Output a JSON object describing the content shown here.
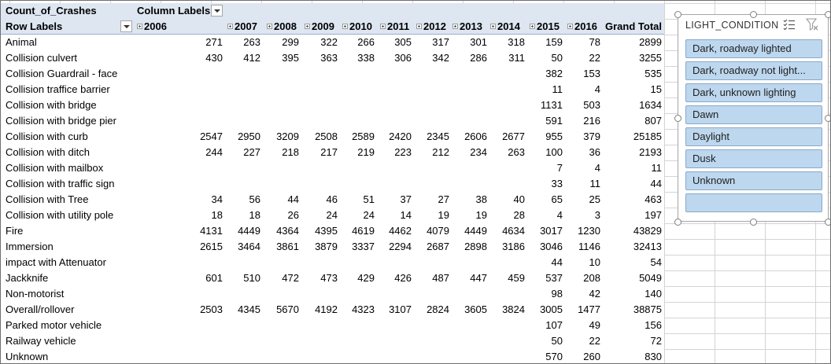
{
  "pivot": {
    "value_field": "Count_of_Crashes",
    "column_labels_header": "Column Labels",
    "row_labels_header": "Row Labels",
    "grand_total_header": "Grand Total",
    "years": [
      "2006",
      "2007",
      "2008",
      "2009",
      "2010",
      "2011",
      "2012",
      "2013",
      "2014",
      "2015",
      "2016"
    ],
    "rows": [
      {
        "label": "Animal",
        "values": [
          "271",
          "263",
          "299",
          "322",
          "266",
          "305",
          "317",
          "301",
          "318",
          "159",
          "78"
        ],
        "total": "2899"
      },
      {
        "label": "Collision culvert",
        "values": [
          "430",
          "412",
          "395",
          "363",
          "338",
          "306",
          "342",
          "286",
          "311",
          "50",
          "22"
        ],
        "total": "3255"
      },
      {
        "label": "Collision Guardrail - face",
        "values": [
          "",
          "",
          "",
          "",
          "",
          "",
          "",
          "",
          "",
          "382",
          "153"
        ],
        "total": "535"
      },
      {
        "label": "Collision traffice barrier",
        "values": [
          "",
          "",
          "",
          "",
          "",
          "",
          "",
          "",
          "",
          "11",
          "4"
        ],
        "total": "15"
      },
      {
        "label": "Collision with bridge",
        "values": [
          "",
          "",
          "",
          "",
          "",
          "",
          "",
          "",
          "",
          "1131",
          "503"
        ],
        "total": "1634"
      },
      {
        "label": "Collision with bridge pier",
        "values": [
          "",
          "",
          "",
          "",
          "",
          "",
          "",
          "",
          "",
          "591",
          "216"
        ],
        "total": "807"
      },
      {
        "label": "Collision with curb",
        "values": [
          "2547",
          "2950",
          "3209",
          "2508",
          "2589",
          "2420",
          "2345",
          "2606",
          "2677",
          "955",
          "379"
        ],
        "total": "25185"
      },
      {
        "label": "Collision with ditch",
        "values": [
          "244",
          "227",
          "218",
          "217",
          "219",
          "223",
          "212",
          "234",
          "263",
          "100",
          "36"
        ],
        "total": "2193"
      },
      {
        "label": "Collision with mailbox",
        "values": [
          "",
          "",
          "",
          "",
          "",
          "",
          "",
          "",
          "",
          "7",
          "4"
        ],
        "total": "11"
      },
      {
        "label": "Collision with traffic sign",
        "values": [
          "",
          "",
          "",
          "",
          "",
          "",
          "",
          "",
          "",
          "33",
          "11"
        ],
        "total": "44"
      },
      {
        "label": "Collision with Tree",
        "values": [
          "34",
          "56",
          "44",
          "46",
          "51",
          "37",
          "27",
          "38",
          "40",
          "65",
          "25"
        ],
        "total": "463"
      },
      {
        "label": "Collision with utility pole",
        "values": [
          "18",
          "18",
          "26",
          "24",
          "24",
          "14",
          "19",
          "19",
          "28",
          "4",
          "3"
        ],
        "total": "197"
      },
      {
        "label": "Fire",
        "values": [
          "4131",
          "4449",
          "4364",
          "4395",
          "4619",
          "4462",
          "4079",
          "4449",
          "4634",
          "3017",
          "1230"
        ],
        "total": "43829"
      },
      {
        "label": "Immersion",
        "values": [
          "2615",
          "3464",
          "3861",
          "3879",
          "3337",
          "2294",
          "2687",
          "2898",
          "3186",
          "3046",
          "1146"
        ],
        "total": "32413"
      },
      {
        "label": "impact with Attenuator",
        "values": [
          "",
          "",
          "",
          "",
          "",
          "",
          "",
          "",
          "",
          "44",
          "10"
        ],
        "total": "54"
      },
      {
        "label": "Jackknife",
        "values": [
          "601",
          "510",
          "472",
          "473",
          "429",
          "426",
          "487",
          "447",
          "459",
          "537",
          "208"
        ],
        "total": "5049"
      },
      {
        "label": "Non-motorist",
        "values": [
          "",
          "",
          "",
          "",
          "",
          "",
          "",
          "",
          "",
          "98",
          "42"
        ],
        "total": "140"
      },
      {
        "label": "Overall/rollover",
        "values": [
          "2503",
          "4345",
          "5670",
          "4192",
          "4323",
          "3107",
          "2824",
          "3605",
          "3824",
          "3005",
          "1477"
        ],
        "total": "38875"
      },
      {
        "label": "Parked motor vehicle",
        "values": [
          "",
          "",
          "",
          "",
          "",
          "",
          "",
          "",
          "",
          "107",
          "49"
        ],
        "total": "156"
      },
      {
        "label": "Railway vehicle",
        "values": [
          "",
          "",
          "",
          "",
          "",
          "",
          "",
          "",
          "",
          "50",
          "22"
        ],
        "total": "72"
      },
      {
        "label": "Unknown",
        "values": [
          "",
          "",
          "",
          "",
          "",
          "",
          "",
          "",
          "",
          "570",
          "260"
        ],
        "total": "830"
      }
    ]
  },
  "slicer": {
    "title": "LIGHT_CONDITION",
    "items": [
      "Dark, roadway lighted",
      "Dark, roadway not light...",
      "Dark, unknown lighting",
      "Dawn",
      "Daylight",
      "Dusk",
      "Unknown",
      ""
    ],
    "icons": {
      "multi_select": "multi-select-icon",
      "clear_filter": "clear-filter-icon"
    }
  },
  "colors": {
    "header_bg": "#dde6f1",
    "slicer_item_bg": "#bdd7ee",
    "gridline": "#d4d4d4"
  }
}
